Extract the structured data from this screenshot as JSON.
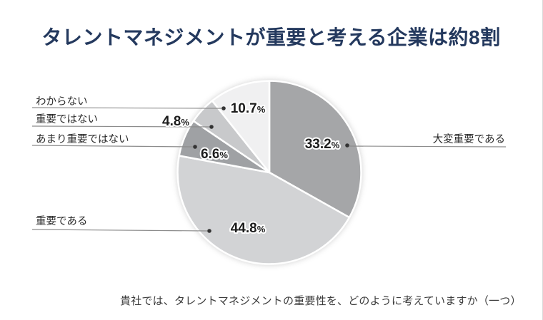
{
  "title": "タレントマネジメントが重要と考える企業は約8割",
  "caption": "貴社では、タレントマネジメントの重要性を、どのように考えていますか（一つ）",
  "percent_sign": "%",
  "colors": {
    "title_text": "#24395e",
    "leader_line": "#8c8c8c",
    "dot": "#333333",
    "background": "#ffffff"
  },
  "chart_data": {
    "type": "pie",
    "title": "タレントマネジメントが重要と考える企業は約8割",
    "question": "貴社では、タレントマネジメントの重要性を、どのように考えていますか（一つ）",
    "start_angle": "12時方向から時計回り",
    "legend_position": "leader-lines",
    "segments": [
      {
        "label": "大変重要である",
        "value": 33.2,
        "value_label": "33.2",
        "color": "#a5a6a8"
      },
      {
        "label": "重要である",
        "value": 44.8,
        "value_label": "44.8",
        "color": "#d2d3d5"
      },
      {
        "label": "あまり重要ではない",
        "value": 6.6,
        "value_label": "6.6",
        "color": "#9fa1a4"
      },
      {
        "label": "重要ではない",
        "value": 4.8,
        "value_label": "4.8",
        "color": "#c8c9cb"
      },
      {
        "label": "わからない",
        "value": 10.7,
        "value_label": "10.7",
        "color": "#f0f0f1"
      }
    ]
  }
}
